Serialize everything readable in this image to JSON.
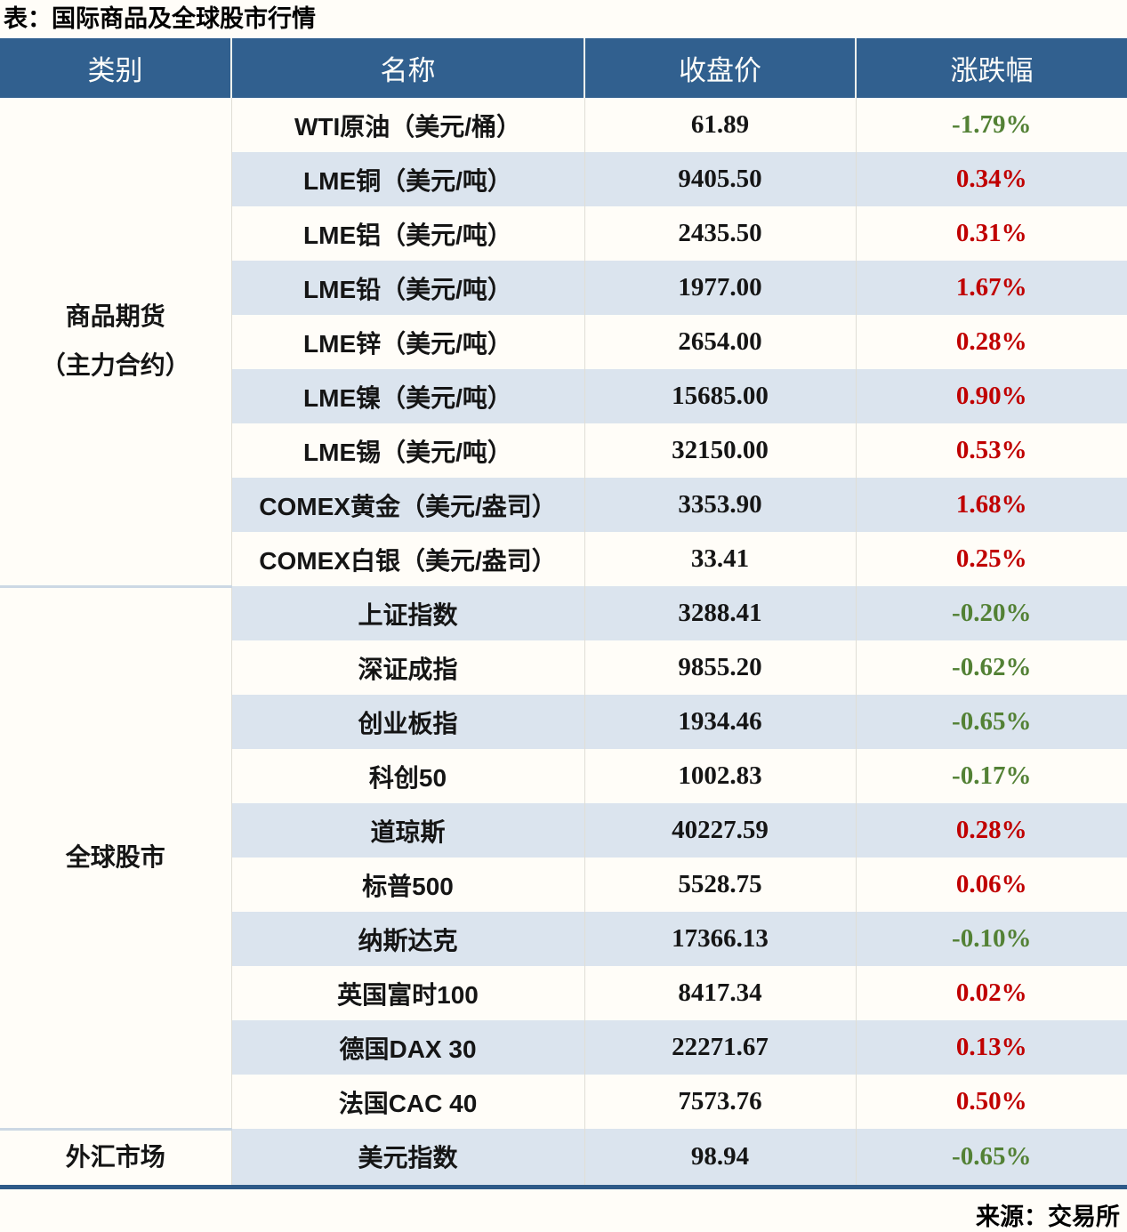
{
  "title": "表：国际商品及全球股市行情",
  "source": "来源：交易所",
  "colors": {
    "header_bg": "#31608f",
    "row_shade": "#dbe4ee",
    "positive_red": "#c00000",
    "negative_green": "#538135",
    "bottom_rule": "#2e5a88",
    "section_divider": "#ccd8e4"
  },
  "table": {
    "headers": [
      "类别",
      "名称",
      "收盘价",
      "涨跌幅"
    ],
    "sections": [
      {
        "category_lines": [
          "商品期货",
          "（主力合约）"
        ],
        "rows": [
          {
            "name": "WTI原油（美元/桶）",
            "close": "61.89",
            "change": "-1.79%",
            "dir": "down"
          },
          {
            "name": "LME铜（美元/吨）",
            "close": "9405.50",
            "change": "0.34%",
            "dir": "up"
          },
          {
            "name": "LME铝（美元/吨）",
            "close": "2435.50",
            "change": "0.31%",
            "dir": "up"
          },
          {
            "name": "LME铅（美元/吨）",
            "close": "1977.00",
            "change": "1.67%",
            "dir": "up"
          },
          {
            "name": "LME锌（美元/吨）",
            "close": "2654.00",
            "change": "0.28%",
            "dir": "up"
          },
          {
            "name": "LME镍（美元/吨）",
            "close": "15685.00",
            "change": "0.90%",
            "dir": "up"
          },
          {
            "name": "LME锡（美元/吨）",
            "close": "32150.00",
            "change": "0.53%",
            "dir": "up"
          },
          {
            "name": "COMEX黄金（美元/盎司）",
            "close": "3353.90",
            "change": "1.68%",
            "dir": "up"
          },
          {
            "name": "COMEX白银（美元/盎司）",
            "close": "33.41",
            "change": "0.25%",
            "dir": "up"
          }
        ]
      },
      {
        "category_lines": [
          "全球股市"
        ],
        "rows": [
          {
            "name": "上证指数",
            "close": "3288.41",
            "change": "-0.20%",
            "dir": "down"
          },
          {
            "name": "深证成指",
            "close": "9855.20",
            "change": "-0.62%",
            "dir": "down"
          },
          {
            "name": "创业板指",
            "close": "1934.46",
            "change": "-0.65%",
            "dir": "down"
          },
          {
            "name": "科创50",
            "close": "1002.83",
            "change": "-0.17%",
            "dir": "down"
          },
          {
            "name": "道琼斯",
            "close": "40227.59",
            "change": "0.28%",
            "dir": "up"
          },
          {
            "name": "标普500",
            "close": "5528.75",
            "change": "0.06%",
            "dir": "up"
          },
          {
            "name": "纳斯达克",
            "close": "17366.13",
            "change": "-0.10%",
            "dir": "down"
          },
          {
            "name": "英国富时100",
            "close": "8417.34",
            "change": "0.02%",
            "dir": "up"
          },
          {
            "name": "德国DAX 30",
            "close": "22271.67",
            "change": "0.13%",
            "dir": "up"
          },
          {
            "name": "法国CAC 40",
            "close": "7573.76",
            "change": "0.50%",
            "dir": "up"
          }
        ]
      },
      {
        "category_lines": [
          "外汇市场"
        ],
        "rows": [
          {
            "name": "美元指数",
            "close": "98.94",
            "change": "-0.65%",
            "dir": "down"
          }
        ]
      }
    ]
  },
  "chart_data": {
    "type": "table",
    "title": "表：国际商品及全球股市行情",
    "columns": [
      "类别",
      "名称",
      "收盘价",
      "涨跌幅(%)"
    ],
    "rows": [
      [
        "商品期货（主力合约）",
        "WTI原油（美元/桶）",
        61.89,
        -1.79
      ],
      [
        "商品期货（主力合约）",
        "LME铜（美元/吨）",
        9405.5,
        0.34
      ],
      [
        "商品期货（主力合约）",
        "LME铝（美元/吨）",
        2435.5,
        0.31
      ],
      [
        "商品期货（主力合约）",
        "LME铅（美元/吨）",
        1977.0,
        1.67
      ],
      [
        "商品期货（主力合约）",
        "LME锌（美元/吨）",
        2654.0,
        0.28
      ],
      [
        "商品期货（主力合约）",
        "LME镍（美元/吨）",
        15685.0,
        0.9
      ],
      [
        "商品期货（主力合约）",
        "LME锡（美元/吨）",
        32150.0,
        0.53
      ],
      [
        "商品期货（主力合约）",
        "COMEX黄金（美元/盎司）",
        3353.9,
        1.68
      ],
      [
        "商品期货（主力合约）",
        "COMEX白银（美元/盎司）",
        33.41,
        0.25
      ],
      [
        "全球股市",
        "上证指数",
        3288.41,
        -0.2
      ],
      [
        "全球股市",
        "深证成指",
        9855.2,
        -0.62
      ],
      [
        "全球股市",
        "创业板指",
        1934.46,
        -0.65
      ],
      [
        "全球股市",
        "科创50",
        1002.83,
        -0.17
      ],
      [
        "全球股市",
        "道琼斯",
        40227.59,
        0.28
      ],
      [
        "全球股市",
        "标普500",
        5528.75,
        0.06
      ],
      [
        "全球股市",
        "纳斯达克",
        17366.13,
        -0.1
      ],
      [
        "全球股市",
        "英国富时100",
        8417.34,
        0.02
      ],
      [
        "全球股市",
        "德国DAX 30",
        22271.67,
        0.13
      ],
      [
        "全球股市",
        "法国CAC 40",
        7573.76,
        0.5
      ],
      [
        "外汇市场",
        "美元指数",
        98.94,
        -0.65
      ]
    ],
    "source": "来源：交易所",
    "layout_hints": {
      "positive_change_color": "#c00000",
      "negative_change_color": "#538135",
      "zebra_striping": true,
      "category_column_merged": true
    }
  }
}
